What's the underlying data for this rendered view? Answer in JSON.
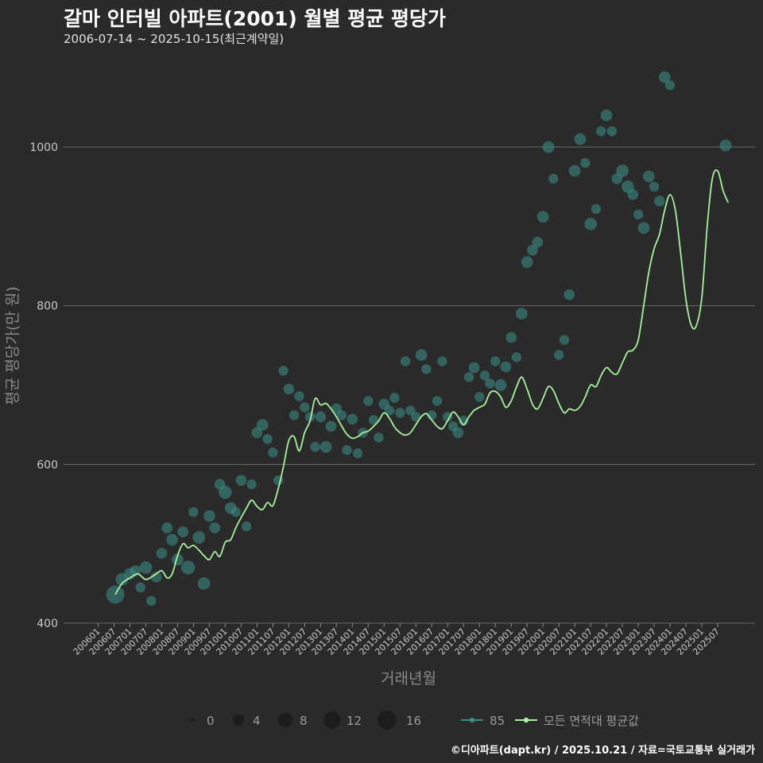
{
  "header": {
    "title": "갈마 인터빌 아파트(2001) 월별 평균 평당가",
    "subtitle": "2006-07-14 ~ 2025-10-15(최근계약일)"
  },
  "footer": {
    "credit": "©디아파트(dapt.kr) / 2025.10.21 / 자료=국토교통부 실거래가"
  },
  "colors": {
    "background": "#2b2a2b",
    "grid": "#6a6a6a",
    "scatter": "#3a8a82",
    "line": "#a8f0a0"
  },
  "chart_data": {
    "type": "line",
    "title": "갈마 인터빌 아파트(2001) 월별 평균 평당가",
    "xlabel": "거래년월",
    "ylabel": "평균 평당가(만 원)",
    "ylim": [
      400,
      1080
    ],
    "yticks": [
      400,
      600,
      800,
      1000
    ],
    "x_range": [
      2006.0,
      2025.917
    ],
    "xtick_labels": [
      "200601",
      "200607",
      "200701",
      "200707",
      "200801",
      "200807",
      "200901",
      "200907",
      "201001",
      "201007",
      "201101",
      "201107",
      "201201",
      "201207",
      "201301",
      "201307",
      "201401",
      "201407",
      "201501",
      "201507",
      "201601",
      "201607",
      "201701",
      "201707",
      "201801",
      "201801",
      "201901",
      "201907",
      "202001",
      "202007",
      "202101",
      "202107",
      "202201",
      "202207",
      "202301",
      "202307",
      "202401",
      "202407",
      "202501",
      "202507"
    ],
    "legend": {
      "size_title": "",
      "size_values": [
        0,
        4,
        8,
        12,
        16
      ],
      "size_labels": [
        "0",
        "4",
        "8",
        "12",
        "16"
      ],
      "series_labels": [
        "85",
        "모든 면적대 평균값"
      ]
    },
    "series": [
      {
        "name": "모든 면적대 평균값",
        "type": "line",
        "points": [
          [
            2006.54,
            436
          ],
          [
            2006.75,
            450
          ],
          [
            2007.0,
            457
          ],
          [
            2007.25,
            462
          ],
          [
            2007.5,
            455
          ],
          [
            2007.75,
            460
          ],
          [
            2008.0,
            466
          ],
          [
            2008.17,
            457
          ],
          [
            2008.33,
            462
          ],
          [
            2008.5,
            485
          ],
          [
            2008.67,
            500
          ],
          [
            2008.83,
            495
          ],
          [
            2009.0,
            498
          ],
          [
            2009.17,
            492
          ],
          [
            2009.33,
            485
          ],
          [
            2009.5,
            480
          ],
          [
            2009.67,
            490
          ],
          [
            2009.83,
            484
          ],
          [
            2010.0,
            502
          ],
          [
            2010.17,
            505
          ],
          [
            2010.33,
            520
          ],
          [
            2010.5,
            533
          ],
          [
            2010.67,
            545
          ],
          [
            2010.83,
            555
          ],
          [
            2011.0,
            547
          ],
          [
            2011.17,
            543
          ],
          [
            2011.33,
            552
          ],
          [
            2011.5,
            548
          ],
          [
            2011.67,
            570
          ],
          [
            2011.83,
            597
          ],
          [
            2012.0,
            630
          ],
          [
            2012.17,
            635
          ],
          [
            2012.33,
            617
          ],
          [
            2012.5,
            640
          ],
          [
            2012.67,
            655
          ],
          [
            2012.83,
            683
          ],
          [
            2013.0,
            675
          ],
          [
            2013.17,
            677
          ],
          [
            2013.33,
            670
          ],
          [
            2013.5,
            660
          ],
          [
            2013.67,
            648
          ],
          [
            2013.83,
            638
          ],
          [
            2014.0,
            633
          ],
          [
            2014.17,
            635
          ],
          [
            2014.33,
            640
          ],
          [
            2014.5,
            642
          ],
          [
            2014.67,
            648
          ],
          [
            2014.83,
            655
          ],
          [
            2015.0,
            665
          ],
          [
            2015.17,
            658
          ],
          [
            2015.33,
            647
          ],
          [
            2015.5,
            640
          ],
          [
            2015.67,
            637
          ],
          [
            2015.83,
            640
          ],
          [
            2016.0,
            650
          ],
          [
            2016.17,
            660
          ],
          [
            2016.33,
            664
          ],
          [
            2016.5,
            656
          ],
          [
            2016.67,
            648
          ],
          [
            2016.83,
            645
          ],
          [
            2017.0,
            655
          ],
          [
            2017.17,
            666
          ],
          [
            2017.33,
            660
          ],
          [
            2017.5,
            650
          ],
          [
            2017.67,
            660
          ],
          [
            2017.83,
            668
          ],
          [
            2018.0,
            672
          ],
          [
            2018.17,
            676
          ],
          [
            2018.33,
            690
          ],
          [
            2018.5,
            692
          ],
          [
            2018.67,
            685
          ],
          [
            2018.83,
            672
          ],
          [
            2019.0,
            680
          ],
          [
            2019.17,
            698
          ],
          [
            2019.33,
            710
          ],
          [
            2019.5,
            695
          ],
          [
            2019.67,
            676
          ],
          [
            2019.83,
            670
          ],
          [
            2020.0,
            683
          ],
          [
            2020.17,
            698
          ],
          [
            2020.33,
            693
          ],
          [
            2020.5,
            677
          ],
          [
            2020.67,
            665
          ],
          [
            2020.83,
            670
          ],
          [
            2021.0,
            668
          ],
          [
            2021.17,
            673
          ],
          [
            2021.33,
            685
          ],
          [
            2021.5,
            700
          ],
          [
            2021.67,
            698
          ],
          [
            2021.83,
            712
          ],
          [
            2022.0,
            722
          ],
          [
            2022.17,
            716
          ],
          [
            2022.33,
            714
          ],
          [
            2022.5,
            728
          ],
          [
            2022.67,
            742
          ],
          [
            2022.83,
            744
          ],
          [
            2023.0,
            757
          ],
          [
            2023.17,
            800
          ],
          [
            2023.33,
            842
          ],
          [
            2023.5,
            872
          ],
          [
            2023.67,
            890
          ],
          [
            2023.83,
            920
          ],
          [
            2024.0,
            940
          ],
          [
            2024.17,
            920
          ],
          [
            2024.33,
            868
          ],
          [
            2024.5,
            808
          ],
          [
            2024.67,
            775
          ],
          [
            2024.83,
            775
          ],
          [
            2025.0,
            810
          ],
          [
            2025.17,
            900
          ],
          [
            2025.33,
            960
          ],
          [
            2025.5,
            970
          ],
          [
            2025.67,
            945
          ],
          [
            2025.83,
            930
          ]
        ]
      },
      {
        "name": "85",
        "type": "scatter",
        "points": [
          [
            2006.54,
            436,
            16
          ],
          [
            2006.75,
            455,
            6
          ],
          [
            2007.0,
            462,
            5
          ],
          [
            2007.17,
            466,
            4
          ],
          [
            2007.33,
            445,
            3
          ],
          [
            2007.5,
            470,
            6
          ],
          [
            2007.67,
            428,
            3
          ],
          [
            2007.83,
            458,
            4
          ],
          [
            2008.0,
            488,
            4
          ],
          [
            2008.17,
            520,
            4
          ],
          [
            2008.33,
            505,
            5
          ],
          [
            2008.5,
            480,
            5
          ],
          [
            2008.67,
            515,
            4
          ],
          [
            2008.83,
            470,
            8
          ],
          [
            2009.0,
            540,
            3
          ],
          [
            2009.17,
            508,
            6
          ],
          [
            2009.33,
            450,
            6
          ],
          [
            2009.5,
            535,
            5
          ],
          [
            2009.67,
            520,
            4
          ],
          [
            2009.83,
            575,
            4
          ],
          [
            2010.0,
            565,
            7
          ],
          [
            2010.17,
            545,
            5
          ],
          [
            2010.33,
            540,
            3
          ],
          [
            2010.5,
            580,
            4
          ],
          [
            2010.67,
            522,
            3
          ],
          [
            2010.83,
            575,
            3
          ],
          [
            2011.0,
            640,
            4
          ],
          [
            2011.17,
            650,
            5
          ],
          [
            2011.33,
            632,
            3
          ],
          [
            2011.5,
            615,
            3
          ],
          [
            2011.67,
            580,
            3
          ],
          [
            2011.83,
            718,
            3
          ],
          [
            2012.0,
            695,
            4
          ],
          [
            2012.17,
            662,
            3
          ],
          [
            2012.33,
            686,
            3
          ],
          [
            2012.5,
            672,
            3
          ],
          [
            2012.67,
            660,
            3
          ],
          [
            2012.83,
            622,
            3
          ],
          [
            2013.0,
            660,
            4
          ],
          [
            2013.17,
            622,
            5
          ],
          [
            2013.33,
            648,
            4
          ],
          [
            2013.5,
            670,
            4
          ],
          [
            2013.67,
            662,
            3
          ],
          [
            2013.83,
            618,
            3
          ],
          [
            2014.0,
            657,
            4
          ],
          [
            2014.17,
            614,
            3
          ],
          [
            2014.33,
            640,
            3
          ],
          [
            2014.5,
            680,
            3
          ],
          [
            2014.67,
            656,
            3
          ],
          [
            2014.83,
            634,
            3
          ],
          [
            2015.0,
            676,
            4
          ],
          [
            2015.17,
            668,
            3
          ],
          [
            2015.33,
            684,
            3
          ],
          [
            2015.5,
            665,
            3
          ],
          [
            2015.67,
            730,
            3
          ],
          [
            2015.83,
            668,
            3
          ],
          [
            2016.0,
            660,
            3
          ],
          [
            2016.17,
            738,
            5
          ],
          [
            2016.33,
            720,
            3
          ],
          [
            2016.5,
            662,
            3
          ],
          [
            2016.67,
            680,
            3
          ],
          [
            2016.83,
            730,
            3
          ],
          [
            2017.0,
            660,
            3
          ],
          [
            2017.17,
            648,
            3
          ],
          [
            2017.33,
            640,
            4
          ],
          [
            2017.5,
            655,
            3
          ],
          [
            2017.67,
            710,
            3
          ],
          [
            2017.83,
            722,
            4
          ],
          [
            2018.0,
            685,
            3
          ],
          [
            2018.17,
            712,
            3
          ],
          [
            2018.33,
            702,
            3
          ],
          [
            2018.5,
            730,
            3
          ],
          [
            2018.67,
            700,
            5
          ],
          [
            2018.83,
            723,
            4
          ],
          [
            2019.0,
            760,
            4
          ],
          [
            2019.17,
            735,
            3
          ],
          [
            2019.33,
            790,
            5
          ],
          [
            2019.5,
            855,
            5
          ],
          [
            2019.67,
            870,
            4
          ],
          [
            2019.83,
            880,
            4
          ],
          [
            2020.0,
            912,
            5
          ],
          [
            2020.17,
            1000,
            5
          ],
          [
            2020.33,
            960,
            3
          ],
          [
            2020.5,
            738,
            3
          ],
          [
            2020.67,
            757,
            3
          ],
          [
            2020.83,
            814,
            4
          ],
          [
            2021.0,
            970,
            5
          ],
          [
            2021.17,
            1010,
            5
          ],
          [
            2021.33,
            980,
            3
          ],
          [
            2021.5,
            903,
            6
          ],
          [
            2021.67,
            922,
            3
          ],
          [
            2021.83,
            1020,
            3
          ],
          [
            2022.0,
            1040,
            5
          ],
          [
            2022.17,
            1020,
            3
          ],
          [
            2022.33,
            960,
            4
          ],
          [
            2022.5,
            970,
            6
          ],
          [
            2022.67,
            950,
            6
          ],
          [
            2022.83,
            940,
            4
          ],
          [
            2023.0,
            915,
            3
          ],
          [
            2023.17,
            898,
            5
          ],
          [
            2023.33,
            963,
            5
          ],
          [
            2023.5,
            950,
            3
          ],
          [
            2023.67,
            932,
            4
          ],
          [
            2023.83,
            1088,
            5
          ],
          [
            2024.0,
            1078,
            3
          ],
          [
            2025.75,
            1002,
            5
          ]
        ]
      }
    ]
  }
}
